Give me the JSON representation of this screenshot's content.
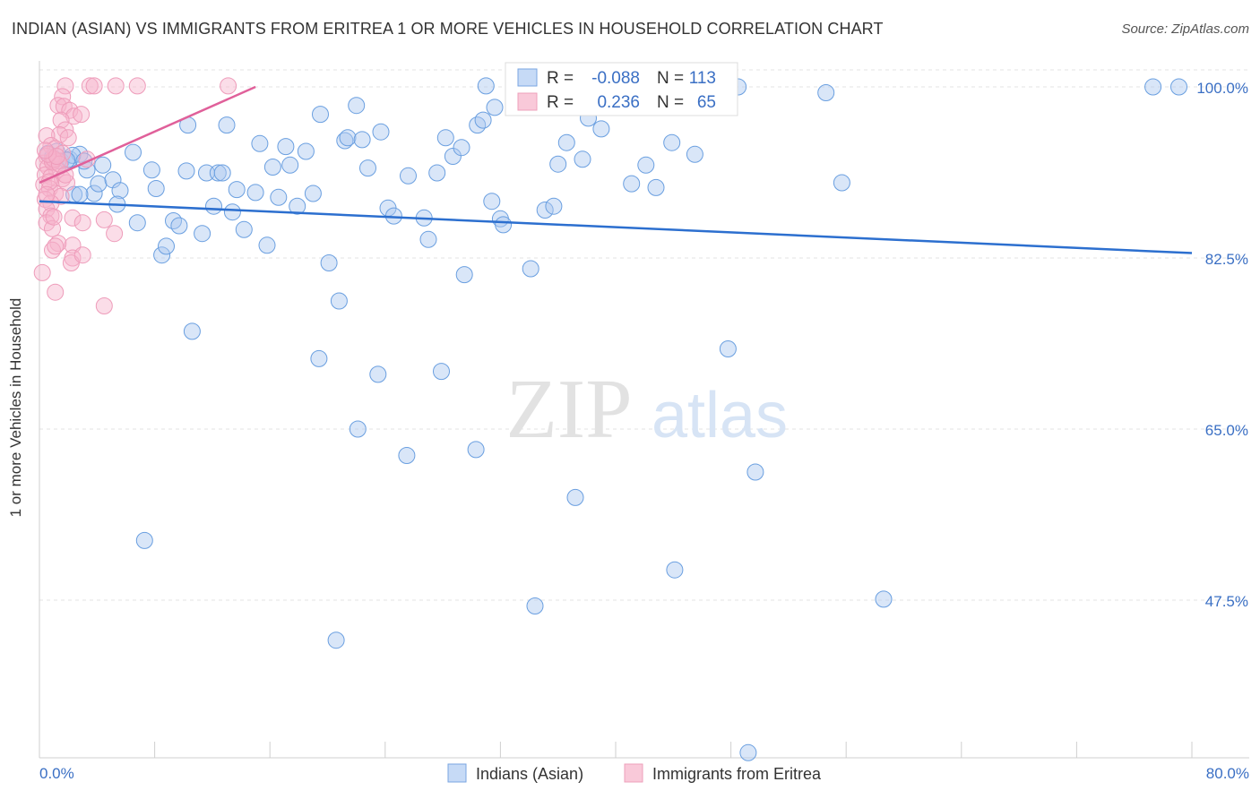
{
  "header": {
    "title": "INDIAN (ASIAN) VS IMMIGRANTS FROM ERITREA 1 OR MORE VEHICLES IN HOUSEHOLD CORRELATION CHART",
    "source": "Source: ZipAtlas.com"
  },
  "watermark": {
    "zip": "ZIP",
    "atlas": "atlas"
  },
  "legend_box": {
    "rows": [
      {
        "r_label": "R =",
        "r_value": "-0.088",
        "n_label": "N =",
        "n_value": "113"
      },
      {
        "r_label": "R =",
        "r_value": "0.236",
        "n_label": "N =",
        "n_value": "65"
      }
    ]
  },
  "bottom_legend": {
    "items": [
      "Indians (Asian)",
      "Immigrants from Eritrea"
    ]
  },
  "colors": {
    "blue": "#6a9fe0",
    "blue_line": "#2c6fcf",
    "pink": "#f2a3bd",
    "pink_line": "#e0609a",
    "value_text": "#3a6fc4"
  },
  "chart_data": {
    "type": "scatter",
    "title": "INDIAN (ASIAN) VS IMMIGRANTS FROM ERITREA 1 OR MORE VEHICLES IN HOUSEHOLD CORRELATION CHART",
    "xlabel": "",
    "ylabel": "1 or more Vehicles in Household",
    "xlim": [
      0,
      80
    ],
    "ylim": [
      33,
      101.5
    ],
    "x_tick_labels": [
      "0.0%",
      "80.0%"
    ],
    "y_ticks": [
      47.5,
      65.0,
      82.5,
      100.0
    ],
    "y_tick_labels": [
      "47.5%",
      "65.0%",
      "82.5%",
      "100.0%"
    ],
    "grid": true,
    "legend_position": "bottom",
    "series": [
      {
        "name": "Indians (Asian)",
        "color": "#6a9fe0",
        "r": -0.088,
        "n": 113,
        "trend": {
          "x": [
            0,
            80
          ],
          "y": [
            88.3,
            83.0
          ]
        },
        "points": [
          [
            0.6,
            93.2
          ],
          [
            0.9,
            92.8
          ],
          [
            1.2,
            93.4
          ],
          [
            1.5,
            92.4
          ],
          [
            2.1,
            92.6
          ],
          [
            2.4,
            89.0
          ],
          [
            2.8,
            93.1
          ],
          [
            3.3,
            91.5
          ],
          [
            3.8,
            89.1
          ],
          [
            4.4,
            92.0
          ],
          [
            2.8,
            89.0
          ],
          [
            4.1,
            90.1
          ],
          [
            5.1,
            90.5
          ],
          [
            5.6,
            89.4
          ],
          [
            6.5,
            93.3
          ],
          [
            5.4,
            88.0
          ],
          [
            6.8,
            86.1
          ],
          [
            7.8,
            91.5
          ],
          [
            8.1,
            89.6
          ],
          [
            8.5,
            82.8
          ],
          [
            8.8,
            83.7
          ],
          [
            9.3,
            86.3
          ],
          [
            9.7,
            85.8
          ],
          [
            10.2,
            91.4
          ],
          [
            10.3,
            96.1
          ],
          [
            11.3,
            85.0
          ],
          [
            11.6,
            91.2
          ],
          [
            12.1,
            87.8
          ],
          [
            12.4,
            91.2
          ],
          [
            12.7,
            91.2
          ],
          [
            13.0,
            96.1
          ],
          [
            13.4,
            87.2
          ],
          [
            13.7,
            89.5
          ],
          [
            14.2,
            85.4
          ],
          [
            15.0,
            89.2
          ],
          [
            15.3,
            94.2
          ],
          [
            15.8,
            83.8
          ],
          [
            16.2,
            91.8
          ],
          [
            16.6,
            88.7
          ],
          [
            17.1,
            93.9
          ],
          [
            17.4,
            92.0
          ],
          [
            17.9,
            87.8
          ],
          [
            18.5,
            93.4
          ],
          [
            19.0,
            89.1
          ],
          [
            19.5,
            97.2
          ],
          [
            20.1,
            82.0
          ],
          [
            20.8,
            78.1
          ],
          [
            21.2,
            94.5
          ],
          [
            21.4,
            94.8
          ],
          [
            22.0,
            98.1
          ],
          [
            22.4,
            94.6
          ],
          [
            22.8,
            91.7
          ],
          [
            23.7,
            95.4
          ],
          [
            24.2,
            87.6
          ],
          [
            24.6,
            86.8
          ],
          [
            25.6,
            90.9
          ],
          [
            26.7,
            86.6
          ],
          [
            27.0,
            84.4
          ],
          [
            27.6,
            91.2
          ],
          [
            28.2,
            94.8
          ],
          [
            28.7,
            92.9
          ],
          [
            29.3,
            93.8
          ],
          [
            29.5,
            80.8
          ],
          [
            30.4,
            96.1
          ],
          [
            30.8,
            96.6
          ],
          [
            31.0,
            100.1
          ],
          [
            31.4,
            88.3
          ],
          [
            31.6,
            97.9
          ],
          [
            32.0,
            86.5
          ],
          [
            32.2,
            85.9
          ],
          [
            34.1,
            81.4
          ],
          [
            35.1,
            87.4
          ],
          [
            35.7,
            87.8
          ],
          [
            36.0,
            92.1
          ],
          [
            36.6,
            94.3
          ],
          [
            37.7,
            92.6
          ],
          [
            38.1,
            96.8
          ],
          [
            39.0,
            95.7
          ],
          [
            40.1,
            100.1
          ],
          [
            41.1,
            90.1
          ],
          [
            42.1,
            92.0
          ],
          [
            42.8,
            89.7
          ],
          [
            43.9,
            94.3
          ],
          [
            45.5,
            93.1
          ],
          [
            47.1,
            100.0
          ],
          [
            48.5,
            100.0
          ],
          [
            54.6,
            99.4
          ],
          [
            55.7,
            90.2
          ],
          [
            77.3,
            100.0
          ],
          [
            79.1,
            100.0
          ],
          [
            2.3,
            93.0
          ],
          [
            3.1,
            92.4
          ],
          [
            1.9,
            92.5
          ],
          [
            10.6,
            75.0
          ],
          [
            19.4,
            72.2
          ],
          [
            23.5,
            70.6
          ],
          [
            27.9,
            70.9
          ],
          [
            47.8,
            73.2
          ],
          [
            22.1,
            65.0
          ],
          [
            25.5,
            62.3
          ],
          [
            30.3,
            62.9
          ],
          [
            37.2,
            58.0
          ],
          [
            49.7,
            60.6
          ],
          [
            7.3,
            53.6
          ],
          [
            44.1,
            50.6
          ],
          [
            34.4,
            46.9
          ],
          [
            58.6,
            47.6
          ],
          [
            20.6,
            43.4
          ],
          [
            49.2,
            31.9
          ]
        ]
      },
      {
        "name": "Immigrants from Eritrea",
        "color": "#f2a3bd",
        "r": 0.236,
        "n": 65,
        "trend": {
          "x": [
            0,
            15
          ],
          "y": [
            90.2,
            100.0
          ]
        },
        "points": [
          [
            1.8,
            100.1
          ],
          [
            3.5,
            100.1
          ],
          [
            3.8,
            100.1
          ],
          [
            5.3,
            100.1
          ],
          [
            6.8,
            100.1
          ],
          [
            13.1,
            100.1
          ],
          [
            1.6,
            99.0
          ],
          [
            1.3,
            98.1
          ],
          [
            1.7,
            98.0
          ],
          [
            2.1,
            97.6
          ],
          [
            2.4,
            97.0
          ],
          [
            2.9,
            97.2
          ],
          [
            1.5,
            96.6
          ],
          [
            1.8,
            95.6
          ],
          [
            1.4,
            95.1
          ],
          [
            0.5,
            95.0
          ],
          [
            0.8,
            94.0
          ],
          [
            1.1,
            93.7
          ],
          [
            1.6,
            93.2
          ],
          [
            0.5,
            92.9
          ],
          [
            0.9,
            92.5
          ],
          [
            1.3,
            92.4
          ],
          [
            0.3,
            92.2
          ],
          [
            0.6,
            91.8
          ],
          [
            1.2,
            91.5
          ],
          [
            0.4,
            91.0
          ],
          [
            0.8,
            90.8
          ],
          [
            1.6,
            90.6
          ],
          [
            1.9,
            90.2
          ],
          [
            0.3,
            90.0
          ],
          [
            0.7,
            89.6
          ],
          [
            1.1,
            89.1
          ],
          [
            1.5,
            88.8
          ],
          [
            0.4,
            88.5
          ],
          [
            0.8,
            88.1
          ],
          [
            0.5,
            87.5
          ],
          [
            0.8,
            86.8
          ],
          [
            0.5,
            86.1
          ],
          [
            0.9,
            85.5
          ],
          [
            1.3,
            84.0
          ],
          [
            2.3,
            86.6
          ],
          [
            3.0,
            86.1
          ],
          [
            4.5,
            86.4
          ],
          [
            5.2,
            85.0
          ],
          [
            0.9,
            83.3
          ],
          [
            1.1,
            83.7
          ],
          [
            2.3,
            83.8
          ],
          [
            2.3,
            82.5
          ],
          [
            2.2,
            82.0
          ],
          [
            3.0,
            82.8
          ],
          [
            0.2,
            81.0
          ],
          [
            1.1,
            79.0
          ],
          [
            4.5,
            77.6
          ],
          [
            0.9,
            92.3
          ],
          [
            1.0,
            92.6
          ],
          [
            1.4,
            92.1
          ],
          [
            0.6,
            93.1
          ],
          [
            1.2,
            92.9
          ],
          [
            0.4,
            93.5
          ],
          [
            2.0,
            94.8
          ],
          [
            3.3,
            92.6
          ],
          [
            0.7,
            90.3
          ],
          [
            1.8,
            91.0
          ],
          [
            0.5,
            89.0
          ],
          [
            1.0,
            86.7
          ]
        ]
      }
    ]
  }
}
